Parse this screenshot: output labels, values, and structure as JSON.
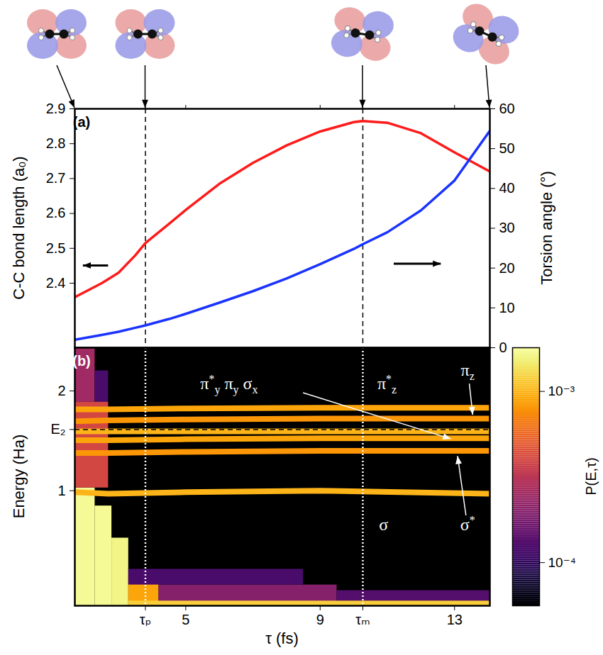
{
  "chart_data": [
    {
      "type": "line",
      "title": "(a)",
      "x": [
        1.7,
        2.5,
        3,
        3.5,
        3.8,
        4.5,
        5,
        6,
        7,
        8,
        9,
        10,
        10.27,
        11,
        12,
        13,
        14.05
      ],
      "xlim": [
        1.7,
        14.05
      ],
      "xticks": [
        {
          "value": 3.8,
          "label": "τₚ"
        },
        5,
        9,
        {
          "value": 10.27,
          "label": "τₘ"
        },
        13
      ],
      "tick_labels": "y",
      "y_label": "C-C bond length (a₀)",
      "ylim": [
        2.215,
        2.9
      ],
      "yticks": [
        2.4,
        2.5,
        2.6,
        2.7,
        2.8,
        2.9
      ],
      "y2_label": "Torsion angle (°)",
      "y2lim": [
        0,
        60
      ],
      "y2ticks": [
        0,
        10,
        20,
        30,
        40,
        50,
        60
      ],
      "series": [
        {
          "color": "#ff1a1a",
          "axis": "y",
          "values": [
            2.36,
            2.4,
            2.43,
            2.48,
            2.515,
            2.57,
            2.61,
            2.685,
            2.745,
            2.795,
            2.835,
            2.862,
            2.865,
            2.86,
            2.83,
            2.775,
            2.72
          ]
        },
        {
          "color": "#1a33ff",
          "axis": "y2",
          "values": [
            2,
            3.2,
            4,
            5,
            5.6,
            7.2,
            8.5,
            11.3,
            14.2,
            17.4,
            21,
            24.8,
            26,
            29,
            34.5,
            42,
            54.5
          ]
        }
      ]
    },
    {
      "type": "heatmap",
      "title": "(b)",
      "x_label": "τ (fs)",
      "xlim": [
        1.7,
        14.05
      ],
      "xticks": [
        {
          "value": 3.8,
          "label": "τₚ"
        },
        5,
        9,
        {
          "value": 10.27,
          "label": "τₘ"
        },
        13
      ],
      "y_label": "Energy (Ha)",
      "log": "y",
      "ylim": [
        0.45,
        2.7
      ],
      "yticks": [
        1,
        {
          "value": 1.53,
          "label": "E₂"
        },
        2
      ],
      "cells": [
        {
          "x": [
            1.7,
            2.3
          ],
          "y": [
            0.45,
            1.02
          ],
          "p": 0.0017
        },
        {
          "x": [
            2.3,
            2.8
          ],
          "y": [
            0.45,
            0.9
          ],
          "p": 0.0017
        },
        {
          "x": [
            2.8,
            3.3
          ],
          "y": [
            0.45,
            0.72
          ],
          "p": 0.0016
        },
        {
          "x": [
            3.3,
            4.2
          ],
          "y": [
            0.45,
            0.56
          ],
          "p": 0.0009
        },
        {
          "x": [
            4.2,
            9.5
          ],
          "y": [
            0.45,
            0.52
          ],
          "p": 0.0002
        },
        {
          "x": [
            3.3,
            8.5
          ],
          "y": [
            0.52,
            0.58
          ],
          "p": 0.00012
        },
        {
          "x": [
            9.5,
            14.05
          ],
          "y": [
            0.45,
            0.5
          ],
          "p": 0.00013
        },
        {
          "x": [
            3.3,
            14.05
          ],
          "y": [
            0.45,
            0.465
          ],
          "p": 0.0012
        },
        {
          "x": [
            1.7,
            2.3
          ],
          "y": [
            1.85,
            2.7
          ],
          "p": 0.00025
        },
        {
          "x": [
            2.3,
            2.7
          ],
          "y": [
            1.85,
            2.3
          ],
          "p": 0.00012
        },
        {
          "x": [
            1.7,
            2.7
          ],
          "y": [
            1.02,
            1.85
          ],
          "p": 0.0004
        }
      ],
      "bands": [
        {
          "x": [
            1.7,
            2.7,
            5,
            9,
            14.05
          ],
          "y": [
            1.76,
            1.76,
            1.77,
            1.78,
            1.78
          ],
          "p": 0.0009
        },
        {
          "x": [
            1.7,
            2.7,
            5,
            9,
            14.05
          ],
          "y": [
            1.62,
            1.63,
            1.64,
            1.65,
            1.65
          ],
          "p": 0.0008
        },
        {
          "x": [
            1.7,
            2.7,
            5,
            9,
            14.05
          ],
          "y": [
            1.51,
            1.51,
            1.51,
            1.51,
            1.51
          ],
          "p": 0.001
        },
        {
          "x": [
            1.7,
            2.7,
            5,
            9,
            14.05
          ],
          "y": [
            1.42,
            1.42,
            1.43,
            1.44,
            1.44
          ],
          "p": 0.0009
        },
        {
          "x": [
            1.7,
            2.7,
            5,
            9,
            14.05
          ],
          "y": [
            1.3,
            1.3,
            1.31,
            1.32,
            1.32
          ],
          "p": 0.0008
        },
        {
          "x": [
            1.7,
            2.7,
            5,
            9,
            14.05
          ],
          "y": [
            0.99,
            0.98,
            0.99,
            1.0,
            0.98
          ],
          "p": 0.001
        }
      ],
      "colorbar": {
        "label": "P(E,τ)",
        "lim": [
          5.6e-05,
          0.0018
        ],
        "ticks": [
          {
            "value": 0.0001,
            "label": "10⁻⁴"
          },
          {
            "value": 0.001,
            "label": "10⁻³"
          }
        ]
      },
      "annotations": [
        "π*y πy σx",
        "π*z",
        "πz",
        "σ",
        "σ*"
      ]
    }
  ]
}
